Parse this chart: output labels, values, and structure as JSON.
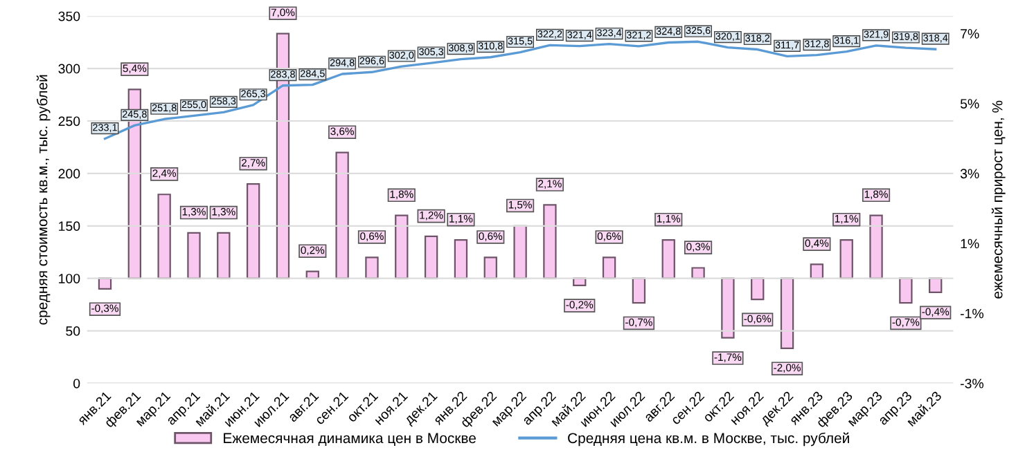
{
  "chart_data": {
    "type": "bar",
    "categories": [
      "янв.21",
      "фев.21",
      "мар.21",
      "апр.21",
      "май.21",
      "июн.21",
      "июл.21",
      "авг.21",
      "сен.21",
      "окт.21",
      "ноя.21",
      "дек.21",
      "янв.22",
      "фев.22",
      "мар.22",
      "апр.22",
      "май.22",
      "июн.22",
      "июл.22",
      "авг.22",
      "сен.22",
      "окт.22",
      "ноя.22",
      "дек.22",
      "янв.23",
      "фев.23",
      "мар.23",
      "апр.23",
      "май.23"
    ],
    "series": [
      {
        "name": "Ежемесячная динамика цен в Москве",
        "axis": "y2",
        "color": "#f9c8f0",
        "value_labels": [
          "-0,3%",
          "5,4%",
          "2,4%",
          "1,3%",
          "1,3%",
          "2,7%",
          "7,0%",
          "0,2%",
          "3,6%",
          "0,6%",
          "1,8%",
          "1,2%",
          "1,1%",
          "0,6%",
          "1,5%",
          "2,1%",
          "-0,2%",
          "0,6%",
          "-0,7%",
          "1,1%",
          "0,3%",
          "-1,7%",
          "-0,6%",
          "-2,0%",
          "0,4%",
          "1,1%",
          "1,8%",
          "-0,7%",
          "-0,4%"
        ],
        "values": [
          -0.3,
          5.4,
          2.4,
          1.3,
          1.3,
          2.7,
          7.0,
          0.2,
          3.6,
          0.6,
          1.8,
          1.2,
          1.1,
          0.6,
          1.5,
          2.1,
          -0.2,
          0.6,
          -0.7,
          1.1,
          0.3,
          -1.7,
          -0.6,
          -2.0,
          0.4,
          1.1,
          1.8,
          -0.7,
          -0.4
        ]
      },
      {
        "name": "Средняя цена кв.м. в Москве, тыс. рублей",
        "type": "line",
        "axis": "y",
        "color": "#5b9bd5",
        "value_labels": [
          "233,1",
          "245,8",
          "251,8",
          "255,0",
          "258,3",
          "265,3",
          "283,8",
          "284,5",
          "294,8",
          "296,6",
          "302,0",
          "305,3",
          "308,9",
          "310,8",
          "315,5",
          "322,2",
          "321,4",
          "323,4",
          "321,2",
          "324,8",
          "325,6",
          "320,1",
          "318,2",
          "311,7",
          "312,8",
          "316,1",
          "321,9",
          "319,8",
          "318,4"
        ],
        "values": [
          233.1,
          245.8,
          251.8,
          255.0,
          258.3,
          265.3,
          283.8,
          284.5,
          294.8,
          296.6,
          302.0,
          305.3,
          308.9,
          310.8,
          315.5,
          322.2,
          321.4,
          323.4,
          321.2,
          324.8,
          325.6,
          320.1,
          318.2,
          311.7,
          312.8,
          316.1,
          321.9,
          319.8,
          318.4
        ]
      }
    ],
    "ylabel": "средняя стоимость кв.м., тыс. рублей",
    "y2label": "ежемесячный прирост цен, %",
    "ylim": [
      0,
      350
    ],
    "yticks": [
      0,
      50,
      100,
      150,
      200,
      250,
      300,
      350
    ],
    "y2lim": [
      -3,
      7.5
    ],
    "y2ticks": [
      {
        "value": -3,
        "label": "-3%"
      },
      {
        "value": -1,
        "label": "-1%"
      },
      {
        "value": 1,
        "label": "1%"
      },
      {
        "value": 3,
        "label": "3%"
      },
      {
        "value": 5,
        "label": "5%"
      },
      {
        "value": 7,
        "label": "7%"
      }
    ],
    "grid": "y",
    "legend": "bottom"
  }
}
